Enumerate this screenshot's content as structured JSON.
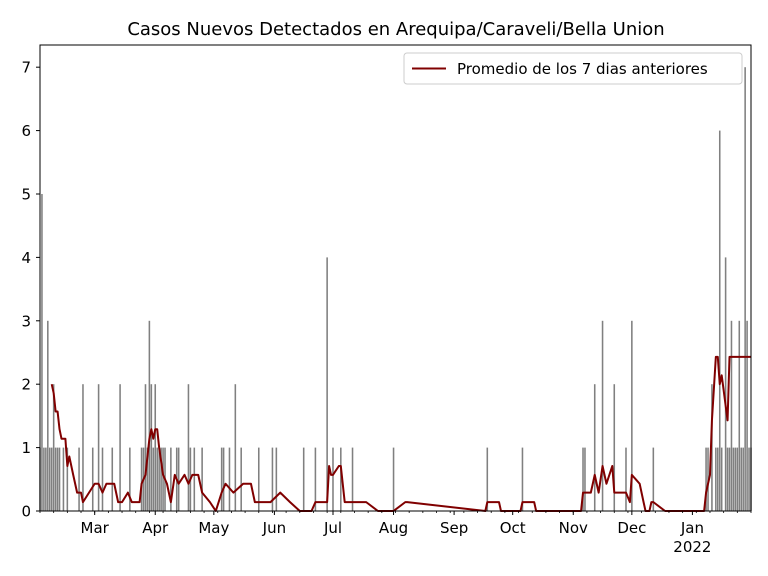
{
  "chart_data": {
    "type": "bar",
    "title": "Casos Nuevos Detectados en Arequipa/Caraveli/Bella Union",
    "xlabel": "",
    "ylabel": "",
    "ylim": [
      0,
      7.35
    ],
    "yticks": [
      0,
      1,
      2,
      3,
      4,
      5,
      6,
      7
    ],
    "xlim": [
      "2021-02-01",
      "2022-01-31"
    ],
    "xticks": [
      {
        "date": "2021-03-01",
        "label": "Mar"
      },
      {
        "date": "2021-04-01",
        "label": "Apr"
      },
      {
        "date": "2021-05-01",
        "label": "May"
      },
      {
        "date": "2021-06-01",
        "label": "Jun"
      },
      {
        "date": "2021-07-01",
        "label": "Jul"
      },
      {
        "date": "2021-08-01",
        "label": "Aug"
      },
      {
        "date": "2021-09-01",
        "label": "Sep"
      },
      {
        "date": "2021-10-01",
        "label": "Oct"
      },
      {
        "date": "2021-11-01",
        "label": "Nov"
      },
      {
        "date": "2021-12-01",
        "label": "Dec"
      },
      {
        "date": "2022-01-01",
        "label": "Jan\n2022"
      }
    ],
    "grid": false,
    "legend": {
      "placement": "top-right"
    },
    "series": [
      {
        "name": "",
        "type": "bar",
        "color": "#808080",
        "x": [
          "2021-02-01",
          "2021-02-02",
          "2021-02-03",
          "2021-02-04",
          "2021-02-05",
          "2021-02-06",
          "2021-02-07",
          "2021-02-08",
          "2021-02-09",
          "2021-02-10",
          "2021-02-11",
          "2021-02-13",
          "2021-02-15",
          "2021-02-21",
          "2021-02-23",
          "2021-02-28",
          "2021-03-03",
          "2021-03-05",
          "2021-03-10",
          "2021-03-14",
          "2021-03-19",
          "2021-03-25",
          "2021-03-26",
          "2021-03-27",
          "2021-03-28",
          "2021-03-29",
          "2021-03-30",
          "2021-03-31",
          "2021-04-01",
          "2021-04-02",
          "2021-04-03",
          "2021-04-04",
          "2021-04-05",
          "2021-04-06",
          "2021-04-09",
          "2021-04-12",
          "2021-04-13",
          "2021-04-18",
          "2021-04-19",
          "2021-04-21",
          "2021-04-25",
          "2021-05-05",
          "2021-05-06",
          "2021-05-09",
          "2021-05-12",
          "2021-05-15",
          "2021-05-24",
          "2021-05-31",
          "2021-06-02",
          "2021-06-16",
          "2021-06-22",
          "2021-06-28",
          "2021-07-01",
          "2021-07-05",
          "2021-07-11",
          "2021-08-01",
          "2021-09-18",
          "2021-10-06",
          "2021-11-06",
          "2021-11-07",
          "2021-11-12",
          "2021-11-16",
          "2021-11-22",
          "2021-11-28",
          "2021-12-01",
          "2021-12-12",
          "2022-01-08",
          "2022-01-09",
          "2022-01-11",
          "2022-01-13",
          "2022-01-14",
          "2022-01-15",
          "2022-01-16",
          "2022-01-18",
          "2022-01-19",
          "2022-01-20",
          "2022-01-21",
          "2022-01-22",
          "2022-01-23",
          "2022-01-24",
          "2022-01-25",
          "2022-01-26",
          "2022-01-27",
          "2022-01-28",
          "2022-01-29",
          "2022-01-30",
          "2022-01-31"
        ],
        "values": [
          1,
          5,
          1,
          1,
          3,
          1,
          1,
          2,
          1,
          1,
          1,
          1,
          1,
          1,
          2,
          1,
          2,
          1,
          1,
          2,
          1,
          1,
          1,
          2,
          1,
          3,
          2,
          1,
          2,
          1,
          1,
          1,
          1,
          1,
          1,
          1,
          1,
          2,
          1,
          1,
          1,
          1,
          1,
          1,
          2,
          1,
          1,
          1,
          1,
          1,
          1,
          4,
          1,
          1,
          1,
          1,
          1,
          1,
          1,
          1,
          2,
          3,
          2,
          1,
          3,
          1,
          1,
          1,
          2,
          1,
          1,
          6,
          1,
          4,
          1,
          1,
          3,
          1,
          1,
          1,
          3,
          1,
          1,
          7,
          3,
          1,
          1
        ]
      },
      {
        "name": "Promedio de los 7 dias anteriores",
        "type": "line",
        "color": "#800000",
        "x": [
          "2021-02-07",
          "2021-02-08",
          "2021-02-09",
          "2021-02-10",
          "2021-02-11",
          "2021-02-12",
          "2021-02-14",
          "2021-02-15",
          "2021-02-16",
          "2021-02-18",
          "2021-02-20",
          "2021-02-22",
          "2021-02-23",
          "2021-03-01",
          "2021-03-03",
          "2021-03-05",
          "2021-03-07",
          "2021-03-11",
          "2021-03-13",
          "2021-03-15",
          "2021-03-18",
          "2021-03-20",
          "2021-03-24",
          "2021-03-25",
          "2021-03-27",
          "2021-03-29",
          "2021-03-30",
          "2021-03-31",
          "2021-04-01",
          "2021-04-02",
          "2021-04-03",
          "2021-04-05",
          "2021-04-07",
          "2021-04-09",
          "2021-04-11",
          "2021-04-13",
          "2021-04-16",
          "2021-04-18",
          "2021-04-20",
          "2021-04-23",
          "2021-04-25",
          "2021-04-29",
          "2021-05-02",
          "2021-05-05",
          "2021-05-07",
          "2021-05-11",
          "2021-05-16",
          "2021-05-20",
          "2021-05-22",
          "2021-05-24",
          "2021-05-30",
          "2021-06-04",
          "2021-06-09",
          "2021-06-14",
          "2021-06-20",
          "2021-06-22",
          "2021-06-24",
          "2021-06-28",
          "2021-06-29",
          "2021-06-30",
          "2021-07-01",
          "2021-07-04",
          "2021-07-05",
          "2021-07-07",
          "2021-07-12",
          "2021-07-18",
          "2021-07-24",
          "2021-08-01",
          "2021-08-07",
          "2021-08-08",
          "2021-09-17",
          "2021-09-18",
          "2021-09-24",
          "2021-09-25",
          "2021-10-05",
          "2021-10-06",
          "2021-10-12",
          "2021-10-13",
          "2021-11-05",
          "2021-11-06",
          "2021-11-10",
          "2021-11-12",
          "2021-11-14",
          "2021-11-16",
          "2021-11-18",
          "2021-11-21",
          "2021-11-22",
          "2021-11-24",
          "2021-11-28",
          "2021-11-30",
          "2021-12-01",
          "2021-12-05",
          "2021-12-07",
          "2021-12-08",
          "2021-12-10",
          "2021-12-11",
          "2021-12-12",
          "2021-12-18",
          "2021-12-19",
          "2022-01-07",
          "2022-01-08",
          "2022-01-10",
          "2022-01-11",
          "2022-01-13",
          "2022-01-14",
          "2022-01-15",
          "2022-01-16",
          "2022-01-19",
          "2022-01-20",
          "2022-01-21",
          "2022-01-22",
          "2022-01-24",
          "2022-01-25",
          "2022-01-26",
          "2022-01-27",
          "2022-01-28",
          "2022-01-31"
        ],
        "values": [
          2.0,
          1.86,
          1.57,
          1.57,
          1.29,
          1.14,
          1.14,
          0.71,
          0.86,
          0.57,
          0.29,
          0.29,
          0.14,
          0.43,
          0.43,
          0.29,
          0.43,
          0.43,
          0.14,
          0.14,
          0.29,
          0.14,
          0.14,
          0.43,
          0.57,
          1.14,
          1.29,
          1.14,
          1.29,
          1.29,
          1.0,
          0.57,
          0.43,
          0.14,
          0.57,
          0.43,
          0.57,
          0.43,
          0.57,
          0.57,
          0.29,
          0.14,
          0.0,
          0.29,
          0.43,
          0.29,
          0.43,
          0.43,
          0.14,
          0.14,
          0.14,
          0.29,
          0.14,
          0.0,
          0.0,
          0.14,
          0.14,
          0.14,
          0.71,
          0.57,
          0.57,
          0.71,
          0.71,
          0.14,
          0.14,
          0.14,
          0.0,
          0.0,
          0.14,
          0.14,
          0.0,
          0.14,
          0.14,
          0.0,
          0.0,
          0.14,
          0.14,
          0.0,
          0.0,
          0.29,
          0.29,
          0.57,
          0.29,
          0.71,
          0.43,
          0.71,
          0.29,
          0.29,
          0.29,
          0.14,
          0.57,
          0.43,
          0.14,
          0.0,
          0.0,
          0.14,
          0.14,
          0.0,
          0.0,
          0.0,
          0.29,
          0.57,
          1.43,
          2.43,
          2.43,
          2.0,
          2.14,
          1.43,
          2.43,
          2.43,
          2.43,
          2.43,
          2.43,
          2.43,
          2.43,
          2.43,
          2.43
        ]
      }
    ]
  }
}
